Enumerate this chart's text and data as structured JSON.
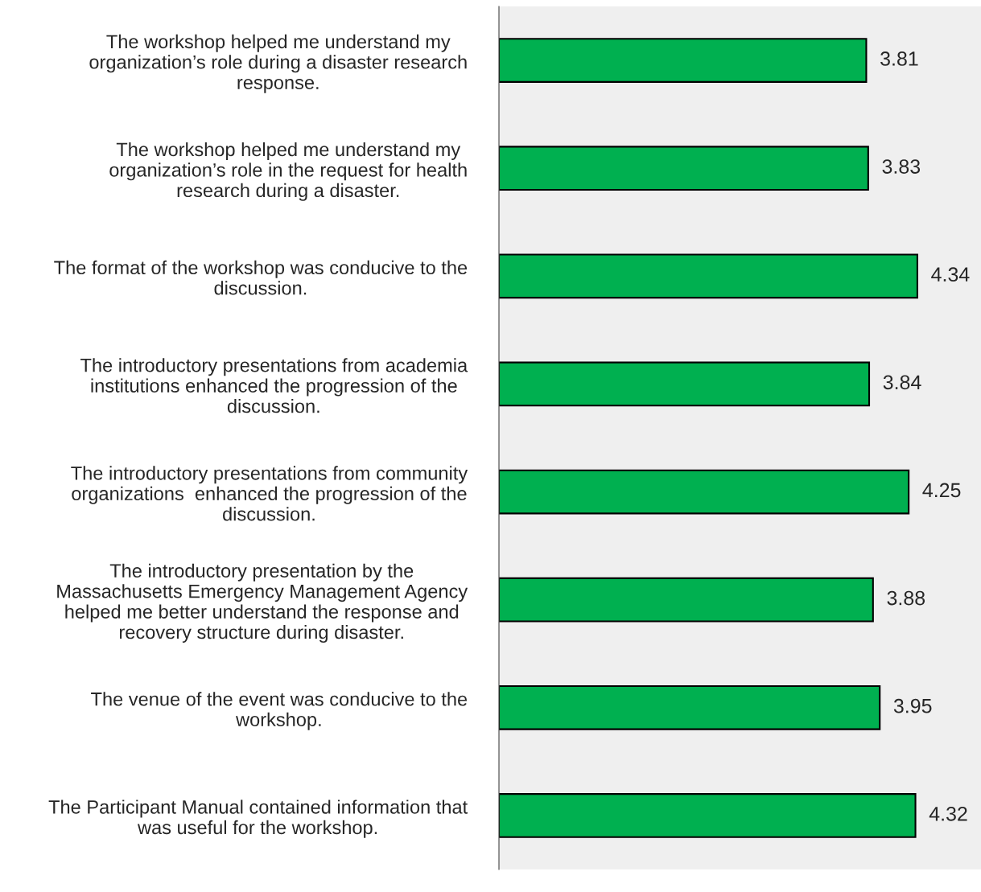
{
  "chart_data": {
    "type": "bar",
    "orientation": "horizontal",
    "categories": [
      "The workshop helped me understand my\norganization’s role during a disaster research\nresponse.",
      "The workshop helped me understand my\norganization’s role in the request for health\nresearch during a disaster.",
      "The format of the workshop was conducive to the\ndiscussion.",
      "The introductory presentations from academia\ninstitutions enhanced the progression of the\ndiscussion.",
      "The introductory presentations from community\norganizations  enhanced the progression of the\ndiscussion.",
      "The introductory presentation by the\nMassachusetts Emergency Management Agency\nhelped me better understand the response and\nrecovery structure during disaster.",
      "The venue of the event was conducive to the\nworkshop.",
      "The Participant Manual contained information that\nwas useful for the workshop."
    ],
    "values": [
      3.81,
      3.83,
      4.34,
      3.84,
      4.25,
      3.88,
      3.95,
      4.32
    ],
    "color": "#00b050",
    "data_labels": true,
    "xlim": [
      0,
      5
    ],
    "tick_labels": "y",
    "grid": false
  }
}
